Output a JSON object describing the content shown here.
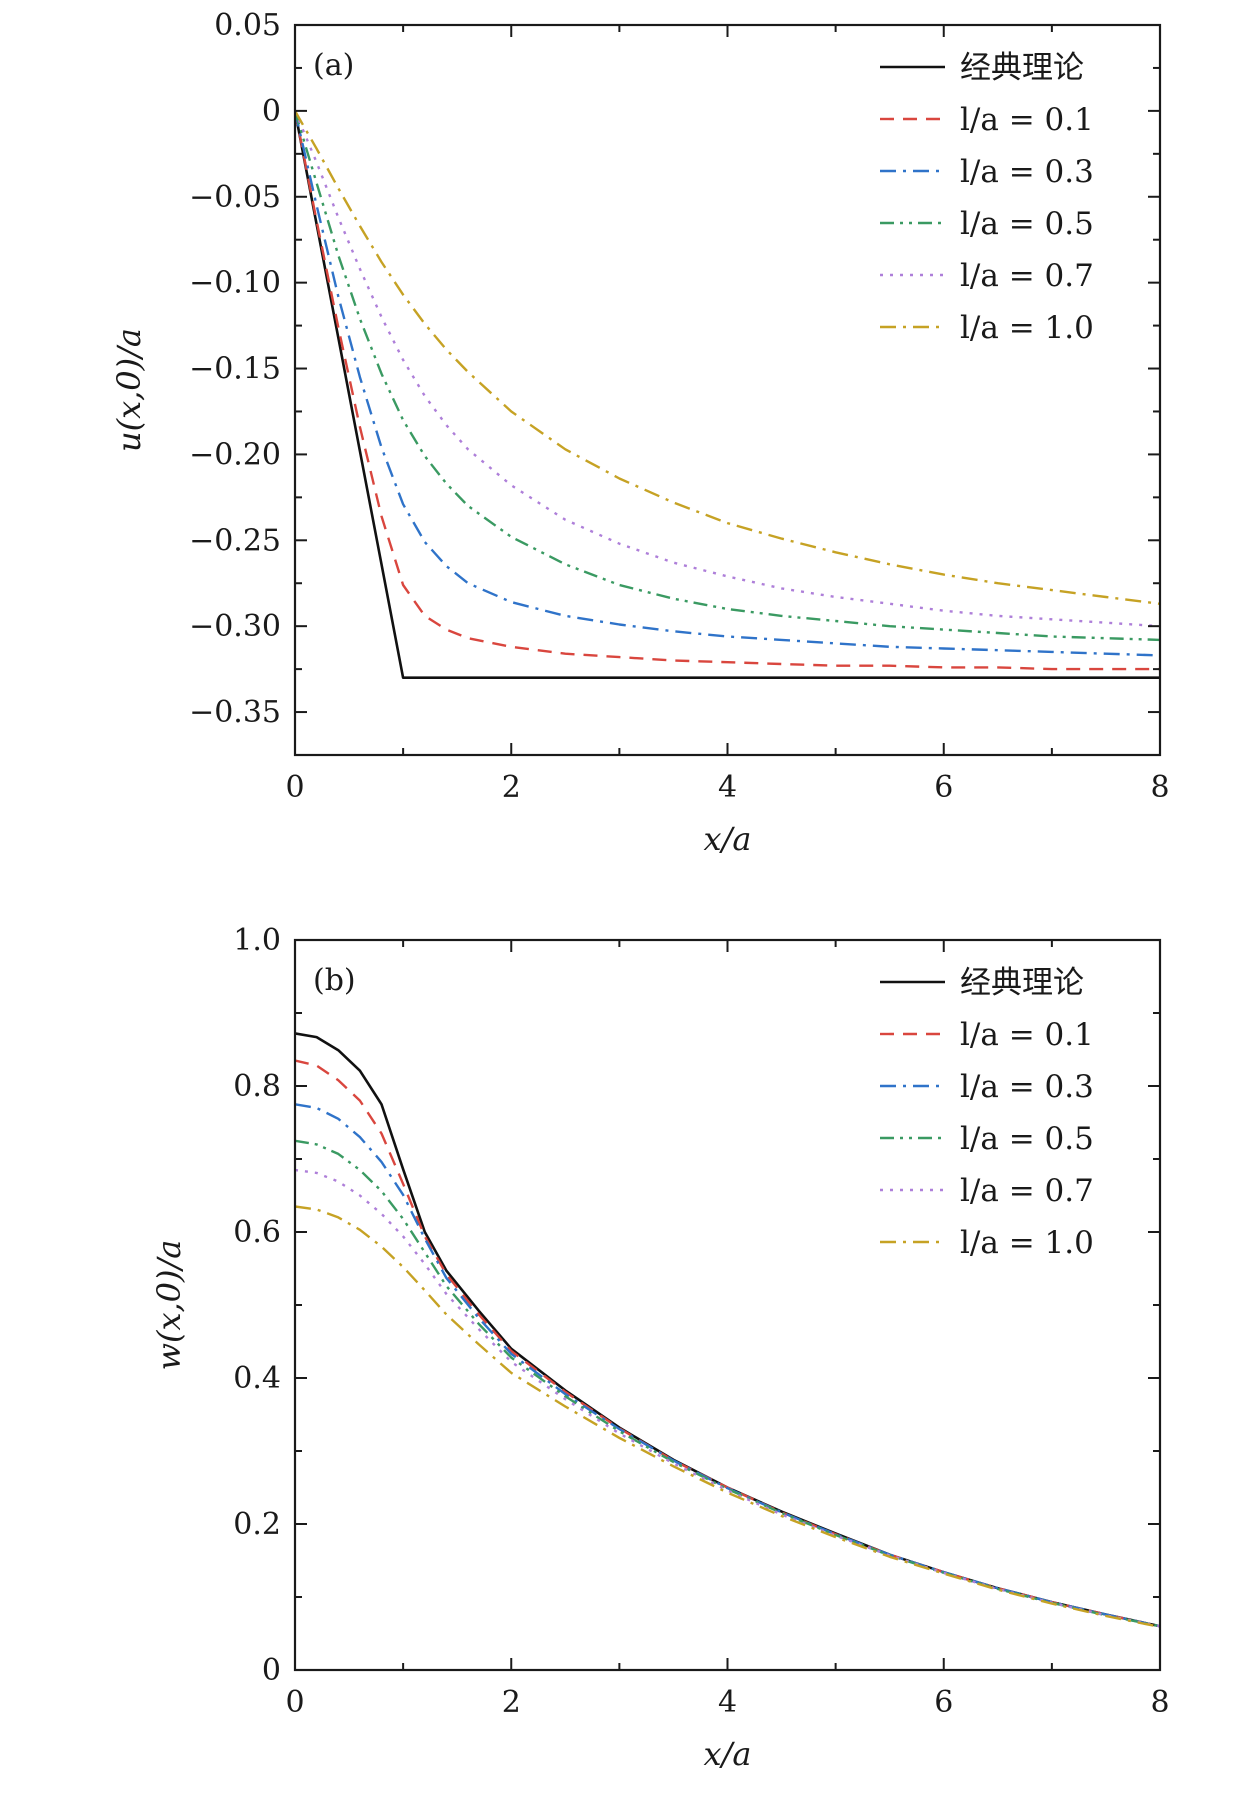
{
  "colors": {
    "classic": "#111111",
    "l01": "#d9463e",
    "l03": "#2f73c9",
    "l05": "#3a9a62",
    "l07": "#ae7fd9",
    "l10": "#c6a224",
    "axis": "#1a1a1a"
  },
  "chart_data": [
    {
      "type": "line",
      "panel_label": "(a)",
      "xlabel": "x/a",
      "ylabel": "u(x,0)/a",
      "xlim": [
        0,
        8
      ],
      "ylim": [
        -0.375,
        0.05
      ],
      "x_ticks": [
        0,
        2,
        4,
        6,
        8
      ],
      "x_tick_labels": [
        "0",
        "2",
        "4",
        "6",
        "8"
      ],
      "y_ticks": [
        0.05,
        0,
        -0.05,
        -0.1,
        -0.15,
        -0.2,
        -0.25,
        -0.3,
        -0.35
      ],
      "y_tick_labels": [
        "0.05",
        "0",
        "−0.05",
        "−0.10",
        "−0.15",
        "−0.20",
        "−0.25",
        "−0.30",
        "−0.35"
      ],
      "legend_position": "top-right",
      "x": [
        0,
        0.2,
        0.4,
        0.6,
        0.8,
        1.0,
        1.2,
        1.4,
        1.6,
        2.0,
        2.5,
        3.0,
        3.5,
        4.0,
        4.5,
        5.0,
        5.5,
        6.0,
        6.5,
        7.0,
        7.5,
        8.0
      ],
      "series": [
        {
          "name": "经典理论",
          "color_key": "classic",
          "dash": "solid",
          "values": [
            0,
            -0.066,
            -0.132,
            -0.198,
            -0.264,
            -0.33,
            -0.33,
            -0.33,
            -0.33,
            -0.33,
            -0.33,
            -0.33,
            -0.33,
            -0.33,
            -0.33,
            -0.33,
            -0.33,
            -0.33,
            -0.33,
            -0.33,
            -0.33,
            -0.33
          ]
        },
        {
          "name": "l/a = 0.1",
          "color_key": "l01",
          "dash": "dashed",
          "values": [
            0,
            -0.064,
            -0.126,
            -0.184,
            -0.236,
            -0.276,
            -0.294,
            -0.302,
            -0.307,
            -0.312,
            -0.316,
            -0.318,
            -0.32,
            -0.321,
            -0.322,
            -0.323,
            -0.323,
            -0.324,
            -0.324,
            -0.325,
            -0.325,
            -0.325
          ]
        },
        {
          "name": "l/a = 0.3",
          "color_key": "l03",
          "dash": "dashdot",
          "values": [
            0,
            -0.055,
            -0.108,
            -0.155,
            -0.196,
            -0.229,
            -0.251,
            -0.265,
            -0.275,
            -0.286,
            -0.294,
            -0.299,
            -0.303,
            -0.306,
            -0.308,
            -0.31,
            -0.312,
            -0.313,
            -0.314,
            -0.315,
            -0.316,
            -0.317
          ]
        },
        {
          "name": "l/a = 0.5",
          "color_key": "l05",
          "dash": "dashdotdot",
          "values": [
            0,
            -0.042,
            -0.084,
            -0.121,
            -0.153,
            -0.18,
            -0.201,
            -0.217,
            -0.23,
            -0.248,
            -0.264,
            -0.276,
            -0.284,
            -0.29,
            -0.294,
            -0.297,
            -0.3,
            -0.302,
            -0.304,
            -0.306,
            -0.307,
            -0.308
          ]
        },
        {
          "name": "l/a = 0.7",
          "color_key": "l07",
          "dash": "dotted",
          "values": [
            0,
            -0.03,
            -0.062,
            -0.092,
            -0.12,
            -0.145,
            -0.166,
            -0.183,
            -0.197,
            -0.218,
            -0.238,
            -0.252,
            -0.263,
            -0.271,
            -0.278,
            -0.283,
            -0.287,
            -0.291,
            -0.294,
            -0.296,
            -0.298,
            -0.3
          ]
        },
        {
          "name": "l/a = 1.0",
          "color_key": "l10",
          "dash": "dashdot",
          "values": [
            0,
            -0.022,
            -0.045,
            -0.067,
            -0.088,
            -0.107,
            -0.124,
            -0.139,
            -0.152,
            -0.175,
            -0.197,
            -0.214,
            -0.228,
            -0.24,
            -0.249,
            -0.257,
            -0.264,
            -0.27,
            -0.275,
            -0.279,
            -0.283,
            -0.287
          ]
        }
      ]
    },
    {
      "type": "line",
      "panel_label": "(b)",
      "xlabel": "x/a",
      "ylabel": "w(x,0)/a",
      "xlim": [
        0,
        8
      ],
      "ylim": [
        0,
        1.0
      ],
      "x_ticks": [
        0,
        2,
        4,
        6,
        8
      ],
      "x_tick_labels": [
        "0",
        "2",
        "4",
        "6",
        "8"
      ],
      "y_ticks": [
        0,
        0.2,
        0.4,
        0.6,
        0.8,
        1.0
      ],
      "y_tick_labels": [
        "0",
        "0.2",
        "0.4",
        "0.6",
        "0.8",
        "1.0"
      ],
      "legend_position": "top-right",
      "x": [
        0,
        0.2,
        0.4,
        0.6,
        0.8,
        1.0,
        1.2,
        1.4,
        1.7,
        2.0,
        2.5,
        3.0,
        3.5,
        4.0,
        4.5,
        5.0,
        5.5,
        6.0,
        6.5,
        7.0,
        7.5,
        8.0
      ],
      "series": [
        {
          "name": "经典理论",
          "color_key": "classic",
          "dash": "solid",
          "values": [
            0.872,
            0.867,
            0.849,
            0.821,
            0.775,
            0.686,
            0.6,
            0.547,
            0.492,
            0.44,
            0.383,
            0.332,
            0.288,
            0.25,
            0.217,
            0.187,
            0.158,
            0.134,
            0.112,
            0.093,
            0.076,
            0.06
          ]
        },
        {
          "name": "l/a = 0.1",
          "color_key": "l01",
          "dash": "dashed",
          "values": [
            0.835,
            0.828,
            0.808,
            0.78,
            0.735,
            0.666,
            0.594,
            0.542,
            0.487,
            0.437,
            0.381,
            0.331,
            0.287,
            0.25,
            0.216,
            0.186,
            0.158,
            0.134,
            0.112,
            0.093,
            0.076,
            0.06
          ]
        },
        {
          "name": "l/a = 0.3",
          "color_key": "l03",
          "dash": "dashdot",
          "values": [
            0.775,
            0.77,
            0.755,
            0.73,
            0.696,
            0.651,
            0.591,
            0.537,
            0.482,
            0.433,
            0.378,
            0.33,
            0.287,
            0.249,
            0.216,
            0.186,
            0.158,
            0.134,
            0.112,
            0.093,
            0.076,
            0.06
          ]
        },
        {
          "name": "l/a = 0.5",
          "color_key": "l05",
          "dash": "dashdotdot",
          "values": [
            0.725,
            0.72,
            0.707,
            0.685,
            0.656,
            0.618,
            0.572,
            0.526,
            0.474,
            0.428,
            0.375,
            0.327,
            0.285,
            0.248,
            0.215,
            0.185,
            0.157,
            0.133,
            0.111,
            0.092,
            0.075,
            0.06
          ]
        },
        {
          "name": "l/a = 0.7",
          "color_key": "l07",
          "dash": "dotted",
          "values": [
            0.685,
            0.681,
            0.669,
            0.65,
            0.625,
            0.594,
            0.556,
            0.515,
            0.467,
            0.422,
            0.371,
            0.324,
            0.283,
            0.246,
            0.213,
            0.184,
            0.157,
            0.133,
            0.111,
            0.092,
            0.075,
            0.06
          ]
        },
        {
          "name": "l/a = 1.0",
          "color_key": "l10",
          "dash": "dashdot",
          "values": [
            0.635,
            0.631,
            0.62,
            0.603,
            0.58,
            0.552,
            0.52,
            0.487,
            0.446,
            0.407,
            0.361,
            0.318,
            0.279,
            0.243,
            0.211,
            0.182,
            0.155,
            0.132,
            0.11,
            0.091,
            0.074,
            0.059
          ]
        }
      ]
    }
  ]
}
